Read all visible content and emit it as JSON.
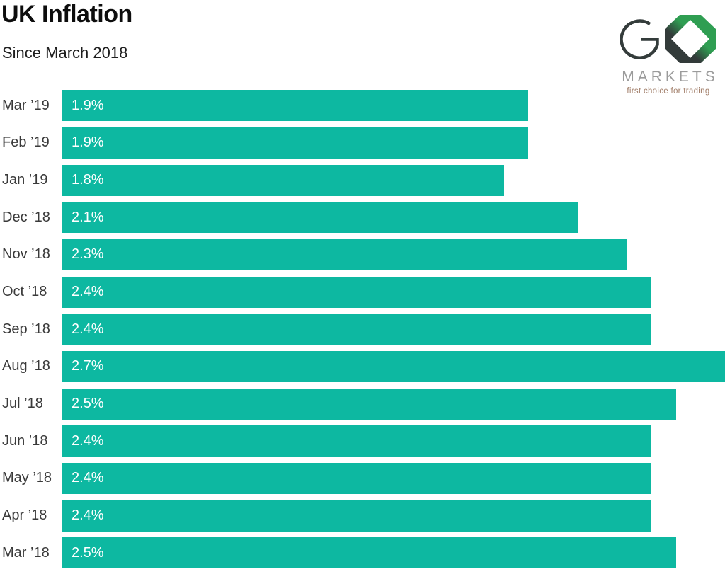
{
  "title": "UK Inflation",
  "subtitle": "Since March 2018",
  "logo": {
    "name": "GO Markets",
    "markets": "MARKETS",
    "tagline": "first choice for trading"
  },
  "colors": {
    "bar": "#0db8a1",
    "value_text": "#ffffff",
    "category_text": "#3a3a3a",
    "title_text": "#0d0d0d",
    "logo_green": "#2f9e52",
    "logo_dark": "#333b3a",
    "logo_markets_gray": "#9b9b9b",
    "logo_tagline_tan": "#a3806c"
  },
  "chart_data": {
    "type": "bar",
    "orientation": "horizontal",
    "title": "UK Inflation",
    "subtitle": "Since March 2018",
    "categories": [
      "Mar ’19",
      "Feb ’19",
      "Jan ’19",
      "Dec ’18",
      "Nov ’18",
      "Oct ’18",
      "Sep ’18",
      "Aug ’18",
      "Jul ’18",
      "Jun ’18",
      "May ’18",
      "Apr ’18",
      "Mar ’18"
    ],
    "values": [
      1.9,
      1.9,
      1.8,
      2.1,
      2.3,
      2.4,
      2.4,
      2.7,
      2.5,
      2.4,
      2.4,
      2.4,
      2.5
    ],
    "value_labels": [
      "1.9%",
      "1.9%",
      "1.8%",
      "2.1%",
      "2.3%",
      "2.4%",
      "2.4%",
      "2.7%",
      "2.5%",
      "2.4%",
      "2.4%",
      "2.4%",
      "2.5%"
    ],
    "xlabel": "",
    "ylabel": "",
    "xlim": [
      0,
      2.7
    ],
    "grid": false,
    "legend": false,
    "value_label_position": "inside-start",
    "category_label_position": "left"
  }
}
